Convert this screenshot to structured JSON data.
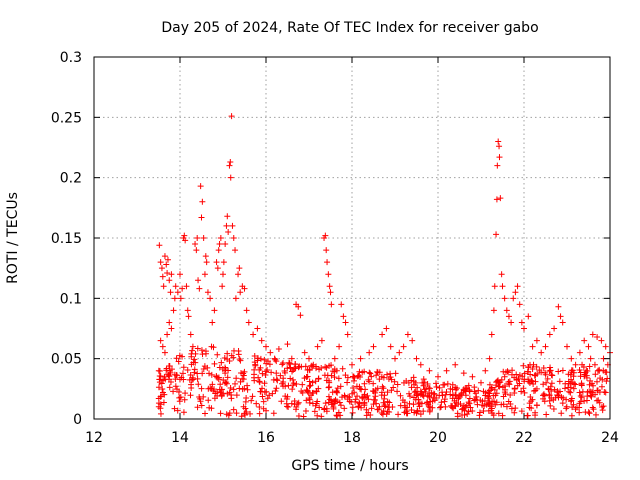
{
  "chart_data": {
    "type": "scatter",
    "title": "Day 205 of 2024, Rate Of TEC Index for receiver gabo",
    "xlabel": "GPS time / hours",
    "ylabel": "ROTI / TECUs",
    "xlim": [
      12,
      24
    ],
    "ylim": [
      0,
      0.3
    ],
    "xticks": [
      "12",
      "14",
      "16",
      "18",
      "20",
      "22",
      "24"
    ],
    "yticks": [
      "0",
      "0.05",
      "0.1",
      "0.15",
      "0.2",
      "0.25",
      "0.3"
    ],
    "grid": true,
    "marker": "+",
    "color": "#ff0000",
    "series": [
      {
        "name": "gabo",
        "points": [
          [
            13.52,
            0.144
          ],
          [
            13.55,
            0.13
          ],
          [
            13.58,
            0.125
          ],
          [
            13.6,
            0.118
          ],
          [
            13.62,
            0.11
          ],
          [
            13.65,
            0.135
          ],
          [
            13.68,
            0.128
          ],
          [
            13.7,
            0.121
          ],
          [
            13.72,
            0.132
          ],
          [
            13.75,
            0.115
          ],
          [
            13.78,
            0.105
          ],
          [
            13.8,
            0.12
          ],
          [
            13.55,
            0.065
          ],
          [
            13.6,
            0.06
          ],
          [
            13.65,
            0.055
          ],
          [
            13.7,
            0.07
          ],
          [
            13.75,
            0.08
          ],
          [
            13.8,
            0.075
          ],
          [
            13.85,
            0.09
          ],
          [
            13.88,
            0.1
          ],
          [
            13.9,
            0.11
          ],
          [
            13.95,
            0.105
          ],
          [
            14.0,
            0.12
          ],
          [
            14.02,
            0.1
          ],
          [
            14.05,
            0.108
          ],
          [
            14.08,
            0.15
          ],
          [
            14.1,
            0.152
          ],
          [
            14.12,
            0.148
          ],
          [
            14.15,
            0.11
          ],
          [
            14.18,
            0.09
          ],
          [
            14.2,
            0.085
          ],
          [
            14.25,
            0.07
          ],
          [
            14.3,
            0.06
          ],
          [
            14.35,
            0.145
          ],
          [
            14.38,
            0.14
          ],
          [
            14.4,
            0.15
          ],
          [
            14.42,
            0.115
          ],
          [
            14.45,
            0.108
          ],
          [
            14.48,
            0.193
          ],
          [
            14.5,
            0.167
          ],
          [
            14.52,
            0.18
          ],
          [
            14.55,
            0.15
          ],
          [
            14.58,
            0.12
          ],
          [
            14.6,
            0.135
          ],
          [
            14.62,
            0.13
          ],
          [
            14.65,
            0.105
          ],
          [
            14.7,
            0.1
          ],
          [
            14.75,
            0.08
          ],
          [
            14.8,
            0.09
          ],
          [
            14.85,
            0.13
          ],
          [
            14.88,
            0.125
          ],
          [
            14.9,
            0.14
          ],
          [
            14.92,
            0.145
          ],
          [
            14.95,
            0.15
          ],
          [
            14.98,
            0.11
          ],
          [
            15.0,
            0.12
          ],
          [
            15.02,
            0.13
          ],
          [
            15.05,
            0.145
          ],
          [
            15.08,
            0.16
          ],
          [
            15.1,
            0.168
          ],
          [
            15.12,
            0.155
          ],
          [
            15.15,
            0.21
          ],
          [
            15.17,
            0.213
          ],
          [
            15.2,
            0.251
          ],
          [
            15.18,
            0.2
          ],
          [
            15.22,
            0.16
          ],
          [
            15.25,
            0.15
          ],
          [
            15.28,
            0.14
          ],
          [
            15.3,
            0.1
          ],
          [
            15.35,
            0.12
          ],
          [
            15.38,
            0.125
          ],
          [
            15.4,
            0.105
          ],
          [
            15.45,
            0.11
          ],
          [
            15.5,
            0.108
          ],
          [
            15.55,
            0.09
          ],
          [
            15.6,
            0.08
          ],
          [
            15.7,
            0.07
          ],
          [
            15.8,
            0.075
          ],
          [
            15.9,
            0.065
          ],
          [
            16.0,
            0.06
          ],
          [
            16.1,
            0.055
          ],
          [
            16.2,
            0.05
          ],
          [
            16.3,
            0.058
          ],
          [
            16.5,
            0.062
          ],
          [
            16.6,
            0.05
          ],
          [
            16.7,
            0.095
          ],
          [
            16.75,
            0.093
          ],
          [
            16.8,
            0.086
          ],
          [
            16.9,
            0.055
          ],
          [
            17.0,
            0.05
          ],
          [
            17.1,
            0.045
          ],
          [
            17.2,
            0.06
          ],
          [
            17.3,
            0.065
          ],
          [
            17.35,
            0.15
          ],
          [
            17.38,
            0.152
          ],
          [
            17.4,
            0.14
          ],
          [
            17.42,
            0.13
          ],
          [
            17.45,
            0.12
          ],
          [
            17.48,
            0.11
          ],
          [
            17.5,
            0.105
          ],
          [
            17.52,
            0.095
          ],
          [
            17.6,
            0.05
          ],
          [
            17.7,
            0.06
          ],
          [
            17.75,
            0.095
          ],
          [
            17.8,
            0.085
          ],
          [
            17.85,
            0.08
          ],
          [
            17.9,
            0.07
          ],
          [
            18.0,
            0.045
          ],
          [
            18.2,
            0.05
          ],
          [
            18.4,
            0.055
          ],
          [
            18.5,
            0.06
          ],
          [
            18.7,
            0.07
          ],
          [
            18.8,
            0.075
          ],
          [
            18.9,
            0.06
          ],
          [
            19.0,
            0.05
          ],
          [
            19.1,
            0.055
          ],
          [
            19.2,
            0.06
          ],
          [
            19.3,
            0.07
          ],
          [
            19.4,
            0.065
          ],
          [
            19.5,
            0.05
          ],
          [
            19.6,
            0.045
          ],
          [
            19.8,
            0.04
          ],
          [
            20.0,
            0.035
          ],
          [
            20.2,
            0.04
          ],
          [
            20.4,
            0.045
          ],
          [
            20.6,
            0.038
          ],
          [
            20.8,
            0.035
          ],
          [
            21.0,
            0.03
          ],
          [
            21.1,
            0.04
          ],
          [
            21.2,
            0.05
          ],
          [
            21.25,
            0.07
          ],
          [
            21.3,
            0.09
          ],
          [
            21.32,
            0.11
          ],
          [
            21.35,
            0.153
          ],
          [
            21.37,
            0.182
          ],
          [
            21.38,
            0.21
          ],
          [
            21.4,
            0.23
          ],
          [
            21.42,
            0.226
          ],
          [
            21.43,
            0.217
          ],
          [
            21.45,
            0.183
          ],
          [
            21.48,
            0.12
          ],
          [
            21.5,
            0.11
          ],
          [
            21.55,
            0.1
          ],
          [
            21.6,
            0.09
          ],
          [
            21.65,
            0.085
          ],
          [
            21.7,
            0.08
          ],
          [
            21.75,
            0.1
          ],
          [
            21.8,
            0.105
          ],
          [
            21.85,
            0.11
          ],
          [
            21.9,
            0.095
          ],
          [
            21.95,
            0.08
          ],
          [
            22.0,
            0.075
          ],
          [
            22.1,
            0.085
          ],
          [
            22.2,
            0.06
          ],
          [
            22.3,
            0.065
          ],
          [
            22.4,
            0.055
          ],
          [
            22.5,
            0.06
          ],
          [
            22.6,
            0.07
          ],
          [
            22.7,
            0.075
          ],
          [
            22.8,
            0.093
          ],
          [
            22.85,
            0.085
          ],
          [
            22.9,
            0.08
          ],
          [
            23.0,
            0.06
          ],
          [
            23.1,
            0.05
          ],
          [
            23.2,
            0.045
          ],
          [
            23.3,
            0.055
          ],
          [
            23.4,
            0.065
          ],
          [
            23.5,
            0.06
          ],
          [
            23.6,
            0.07
          ],
          [
            23.7,
            0.068
          ],
          [
            23.8,
            0.065
          ],
          [
            23.9,
            0.06
          ],
          [
            24.0,
            0.055
          ],
          [
            23.95,
            0.045
          ],
          [
            23.85,
            0.05
          ],
          [
            23.75,
            0.04
          ],
          [
            23.65,
            0.045
          ],
          [
            23.55,
            0.05
          ],
          [
            23.45,
            0.04
          ],
          [
            23.35,
            0.045
          ]
        ],
        "background_band": {
          "x_start": 13.5,
          "x_end": 24.0,
          "y_min": 0.002,
          "y_max_by_hour": [
            [
              13.5,
              0.04
            ],
            [
              14.0,
              0.055
            ],
            [
              14.5,
              0.06
            ],
            [
              15.0,
              0.06
            ],
            [
              15.5,
              0.055
            ],
            [
              16.0,
              0.05
            ],
            [
              16.5,
              0.048
            ],
            [
              17.0,
              0.045
            ],
            [
              17.5,
              0.045
            ],
            [
              18.0,
              0.04
            ],
            [
              18.5,
              0.04
            ],
            [
              19.0,
              0.038
            ],
            [
              19.5,
              0.035
            ],
            [
              20.0,
              0.03
            ],
            [
              20.5,
              0.03
            ],
            [
              21.0,
              0.025
            ],
            [
              21.5,
              0.04
            ],
            [
              22.0,
              0.045
            ],
            [
              22.5,
              0.045
            ],
            [
              23.0,
              0.04
            ],
            [
              23.5,
              0.045
            ],
            [
              24.0,
              0.045
            ]
          ],
          "density_per_hour": 90
        }
      }
    ]
  }
}
